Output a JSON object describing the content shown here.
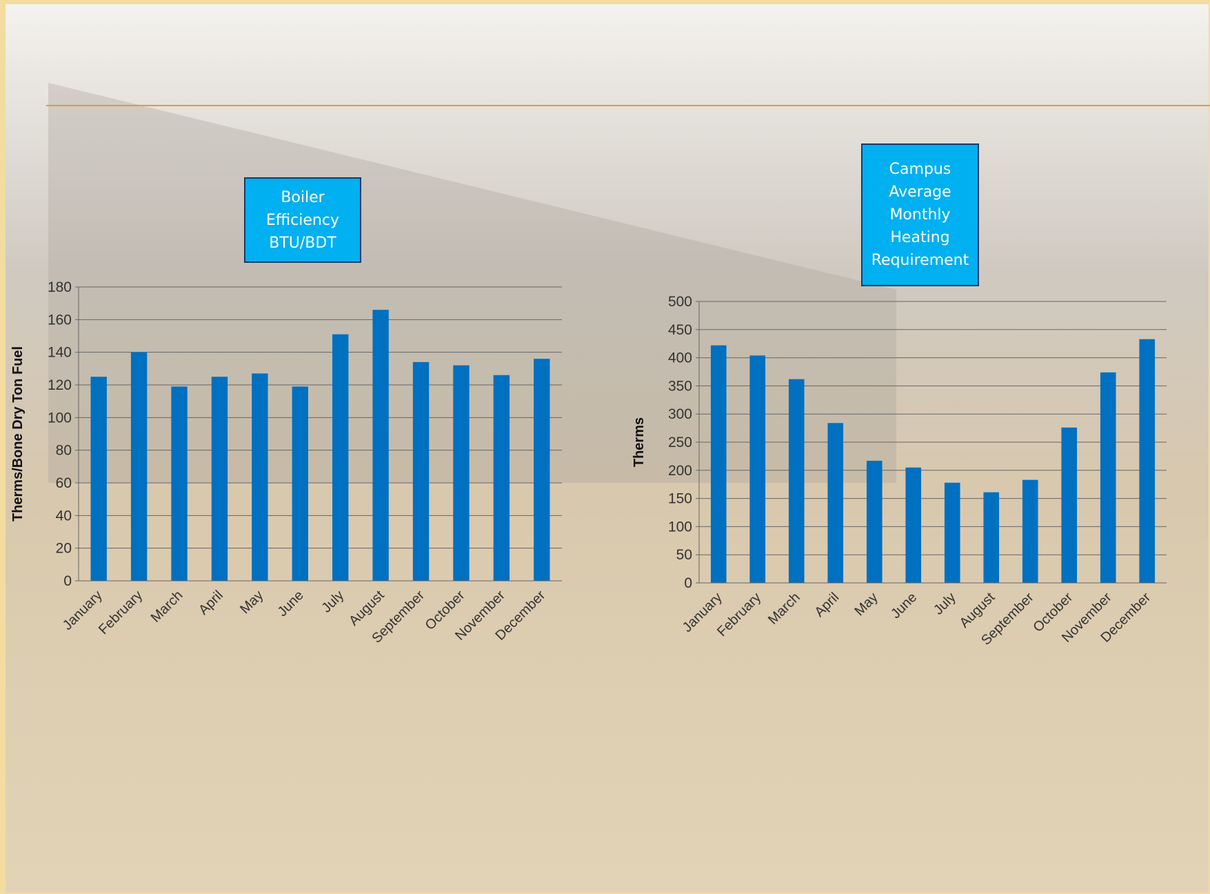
{
  "chart_data": [
    {
      "type": "bar",
      "title": "Boiler Efficiency BTU/BDT",
      "y_label": "Therms/Bone Dry Ton Fuel",
      "categories": [
        "January",
        "February",
        "March",
        "April",
        "May",
        "June",
        "July",
        "August",
        "September",
        "October",
        "November",
        "December"
      ],
      "values": [
        125,
        140,
        119,
        125,
        127,
        119,
        151,
        166,
        134,
        132,
        126,
        136
      ],
      "color": "#0070c0",
      "ylim": [
        0,
        180
      ],
      "yticks": [
        0,
        20,
        40,
        60,
        80,
        100,
        120,
        140,
        160,
        180
      ],
      "grid": true
    },
    {
      "type": "bar",
      "title": "Campus Average Monthly Heating Requirement",
      "y_label": "Therms",
      "categories": [
        "January",
        "February",
        "March",
        "April",
        "May",
        "June",
        "July",
        "August",
        "September",
        "October",
        "November",
        "December"
      ],
      "values": [
        422,
        404,
        362,
        284,
        217,
        205,
        178,
        161,
        183,
        276,
        374,
        433
      ],
      "color": "#0070c0",
      "ylim": [
        0,
        500
      ],
      "yticks": [
        0,
        50,
        100,
        150,
        200,
        250,
        300,
        350,
        400,
        450,
        500
      ],
      "grid": true
    }
  ]
}
